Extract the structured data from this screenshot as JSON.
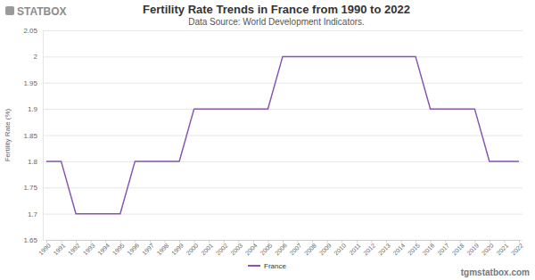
{
  "chart_data": {
    "type": "line",
    "title": "Fertility Rate Trends in France from 1990 to 2022",
    "subtitle": "Data Source: World Development Indicators.",
    "logo": "STATBOX",
    "footer": "tgmstatbox.com",
    "y_label": "Fertility Rate (%)",
    "categories": [
      "1990",
      "1991",
      "1992",
      "1993",
      "1994",
      "1995",
      "1996",
      "1997",
      "1998",
      "1999",
      "2000",
      "2001",
      "2002",
      "2003",
      "2004",
      "2005",
      "2006",
      "2007",
      "2008",
      "2009",
      "2010",
      "2011",
      "2012",
      "2013",
      "2014",
      "2015",
      "2016",
      "2017",
      "2018",
      "2019",
      "2020",
      "2021",
      "2022"
    ],
    "series": [
      {
        "name": "France",
        "color": "#8757b0",
        "values": [
          1.8,
          1.8,
          1.7,
          1.7,
          1.7,
          1.7,
          1.8,
          1.8,
          1.8,
          1.8,
          1.9,
          1.9,
          1.9,
          1.9,
          1.9,
          1.9,
          2,
          2,
          2,
          2,
          2,
          2,
          2,
          2,
          2,
          2,
          1.9,
          1.9,
          1.9,
          1.9,
          1.8,
          1.8,
          1.8
        ]
      }
    ],
    "ylim": [
      1.65,
      2.05
    ],
    "yticks": [
      1.65,
      1.7,
      1.75,
      1.8,
      1.85,
      1.9,
      1.95,
      2,
      2.05
    ],
    "grid": true,
    "legend": "bottom"
  }
}
